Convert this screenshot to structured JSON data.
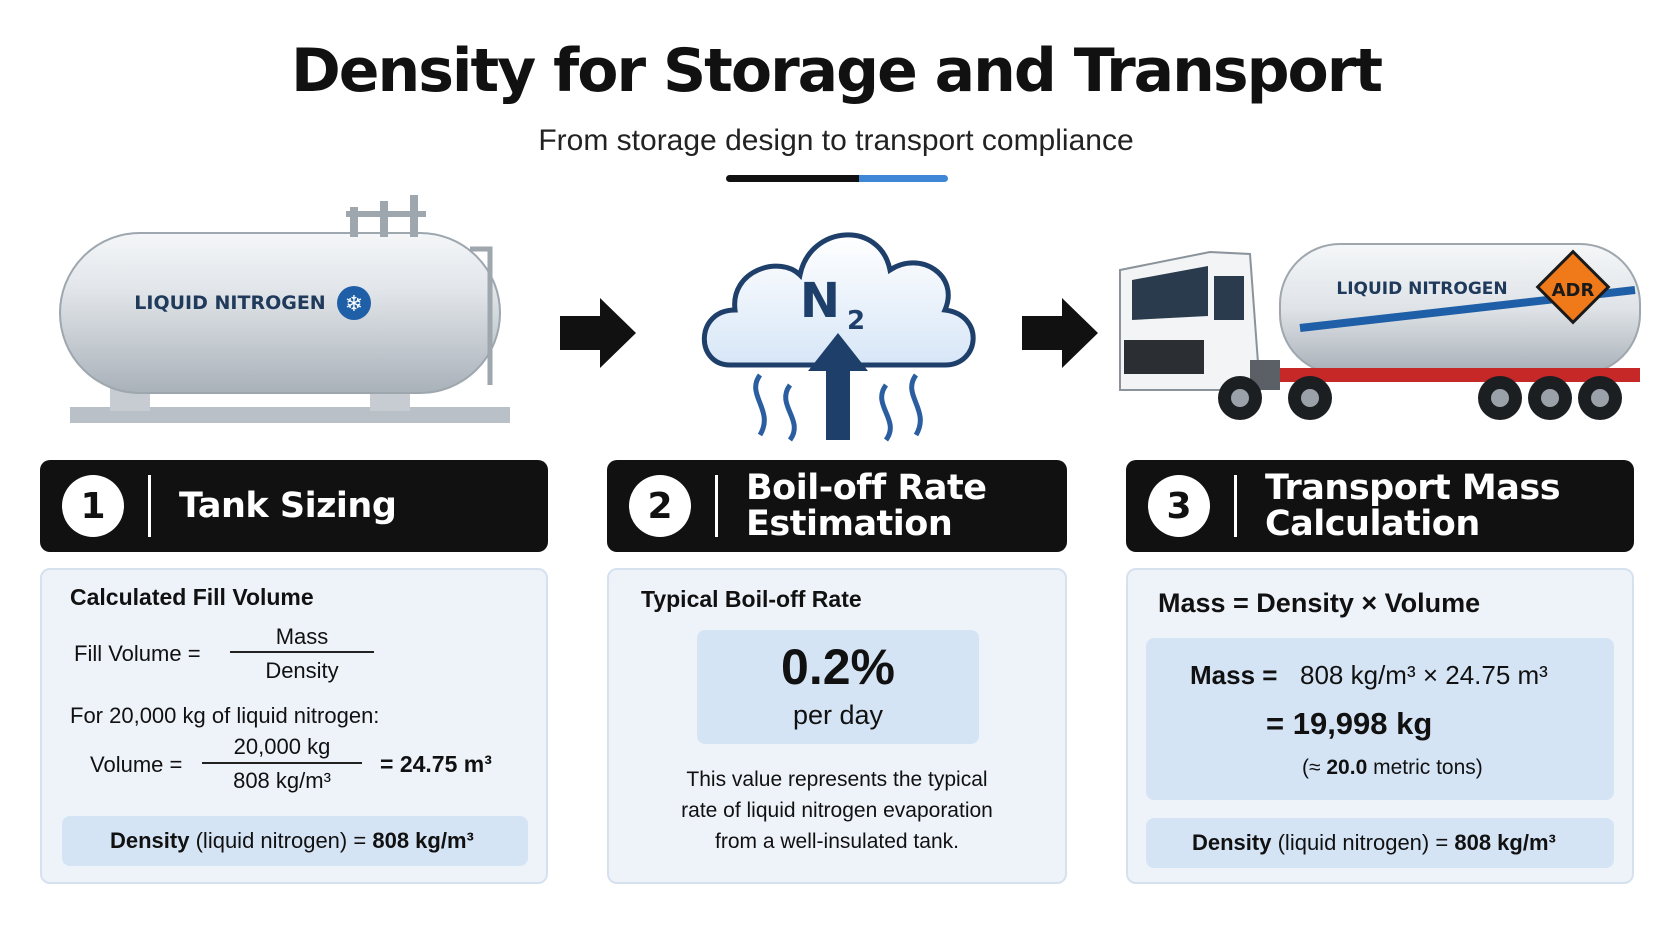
{
  "title": "Density for Storage and Transport",
  "subtitle": "From storage design to transport compliance",
  "illustrations": {
    "tank_label": "LIQUID NITROGEN",
    "cloud_formula": "N",
    "cloud_formula_sub": "2",
    "truck_label": "LIQUID NITROGEN",
    "adr_label": "ADR"
  },
  "steps": [
    {
      "number": "1",
      "title_line1": "Tank Sizing",
      "title_line2": ""
    },
    {
      "number": "2",
      "title_line1": "Boil-off Rate",
      "title_line2": "Estimation"
    },
    {
      "number": "3",
      "title_line1": "Transport Mass",
      "title_line2": "Calculation"
    }
  ],
  "tank_sizing": {
    "heading": "Calculated Fill Volume",
    "fill_volume_label": "Fill Volume =",
    "numerator": "Mass",
    "denominator": "Density",
    "example_text": "For 20,000 kg of liquid nitrogen:",
    "volume_label": "Volume =",
    "volume_numerator": "20,000 kg",
    "volume_denominator": "808 kg/m³",
    "volume_result": "= 24.75 m³",
    "density_label": "Density",
    "density_qualifier": "(liquid nitrogen) =",
    "density_value": "808 kg/m³"
  },
  "boil_off": {
    "heading": "Typical Boil-off Rate",
    "rate": "0.2%",
    "rate_unit": "per day",
    "description_line1": "This value represents the typical",
    "description_line2": "rate of liquid nitrogen evaporation",
    "description_line3": "from a well-insulated tank."
  },
  "transport": {
    "formula": "Mass = Density × Volume",
    "mass_label": "Mass =",
    "mass_expression": "808 kg/m³ × 24.75 m³",
    "mass_result": "= 19,998 kg",
    "approx_prefix": "(≈",
    "approx_value": "20.0",
    "approx_suffix": "metric tons)",
    "density_label": "Density",
    "density_qualifier": "(liquid nitrogen) =",
    "density_value": "808 kg/m³"
  },
  "colors": {
    "accent": "#3f86d6",
    "header_bg": "#111111",
    "card_bg": "#eef3fa",
    "band_bg": "#d5e4f5",
    "adr_orange": "#f07a1a"
  }
}
